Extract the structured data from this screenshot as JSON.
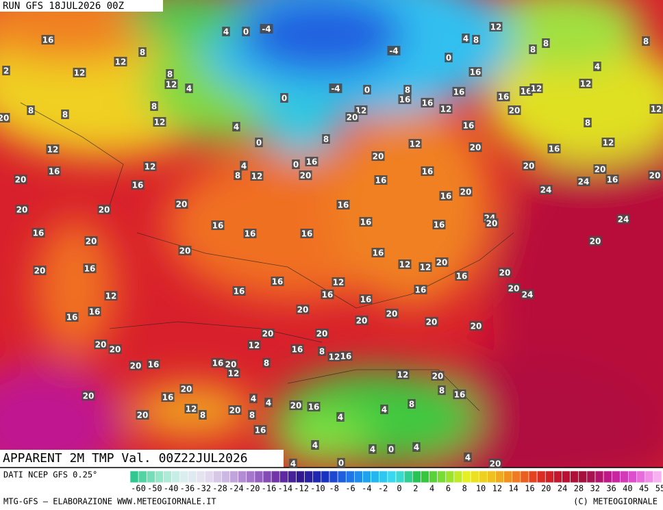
{
  "header": {
    "run": "RUN GFS 18JUL2026 00Z"
  },
  "map": {
    "title": "APPARENT 2M TMP Val. 00Z22JUL2026",
    "labels": [
      4,
      0,
      -4,
      16,
      8,
      -4,
      0,
      4,
      8,
      12,
      8,
      8,
      8,
      2,
      12,
      12,
      8,
      12,
      4,
      4,
      16,
      12,
      -4,
      0,
      8,
      16,
      16,
      16,
      16,
      12,
      0,
      8,
      8,
      8,
      20,
      12,
      20,
      16,
      12,
      20,
      12,
      12,
      4,
      16,
      8,
      8,
      0,
      12,
      20,
      12,
      16,
      12,
      20,
      16,
      0,
      4,
      12,
      20,
      16,
      8,
      12,
      20,
      16,
      20,
      24,
      16,
      20,
      20,
      16,
      16,
      24,
      20,
      16,
      20,
      16,
      20,
      20,
      24,
      20,
      24,
      16,
      16,
      16,
      16,
      16,
      16,
      20,
      20,
      20,
      16,
      12,
      12,
      20,
      20,
      16,
      20,
      16,
      16,
      12,
      20,
      24,
      16,
      16,
      16,
      12,
      16,
      16,
      16,
      20,
      20,
      20,
      20,
      20,
      20,
      20,
      20,
      12,
      16,
      20,
      8,
      12,
      16,
      20,
      16,
      16,
      20,
      12,
      8,
      12,
      20,
      8,
      16,
      20,
      20,
      16,
      4,
      4,
      12,
      8,
      20,
      20,
      16,
      8,
      4,
      4,
      20,
      8,
      16,
      4,
      4,
      0,
      4,
      4,
      0,
      20,
      4
    ]
  },
  "legend": {
    "source": "DATI NCEP GFS 0.25°",
    "ticks": [
      "-60",
      "-50",
      "-40",
      "-36",
      "-32",
      "-28",
      "-24",
      "-20",
      "-16",
      "-14",
      "-12",
      "-10",
      "-8",
      "-6",
      "-4",
      "-2",
      "0",
      "2",
      "4",
      "6",
      "8",
      "10",
      "12",
      "14",
      "16",
      "20",
      "24",
      "28",
      "32",
      "36",
      "40",
      "45",
      "55"
    ]
  },
  "footer": {
    "left": "MTG-GFS — ELABORAZIONE WWW.METEOGIORNALE.IT",
    "right": "(C) METEOGIORNALE"
  }
}
